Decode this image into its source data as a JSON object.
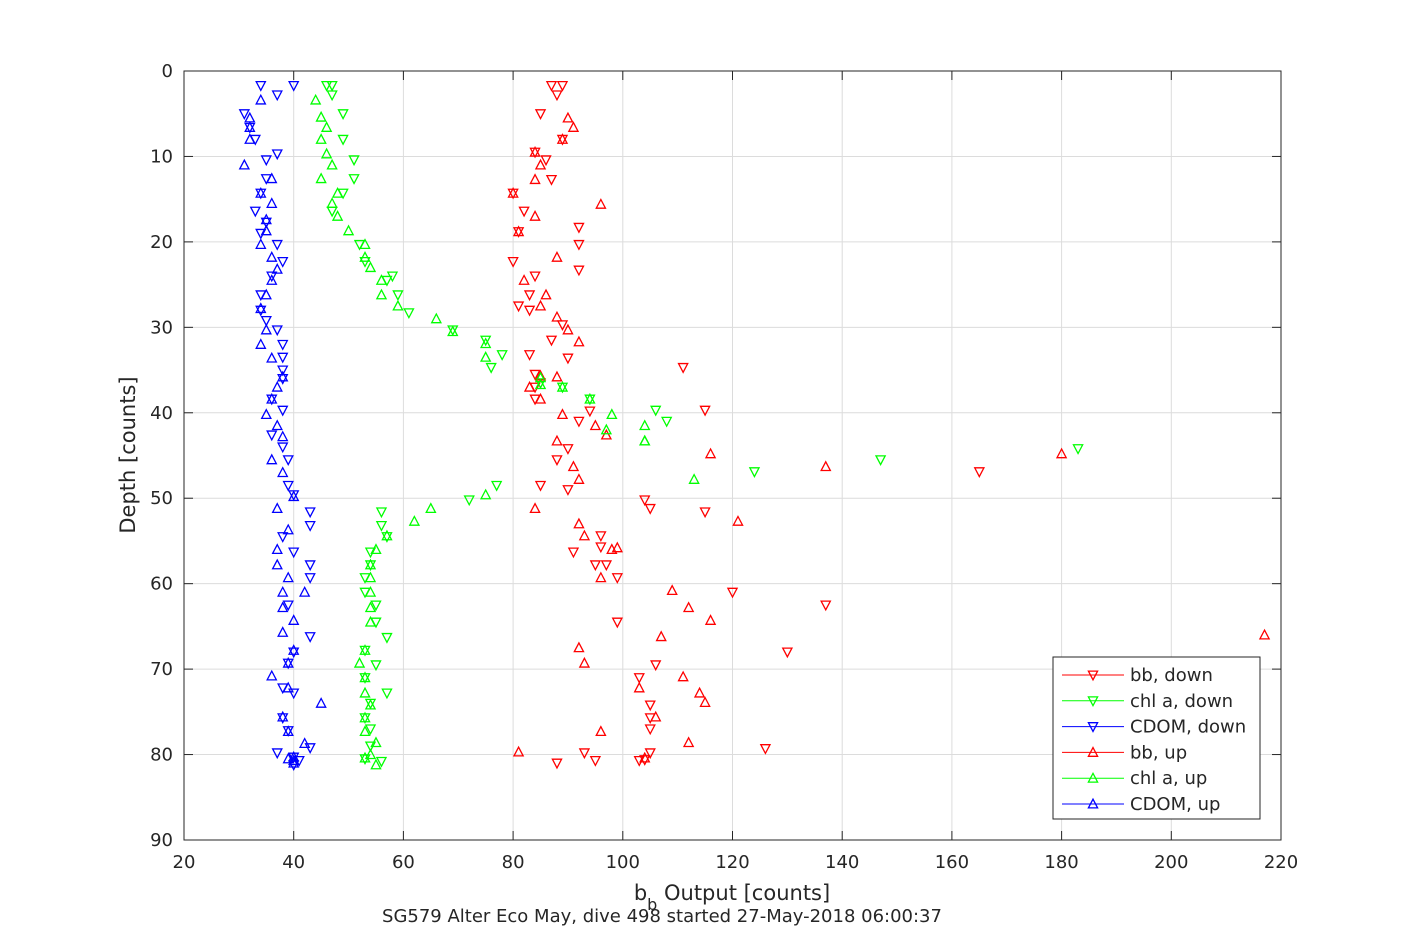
{
  "chart_data": {
    "type": "scatter",
    "xlabel": "b",
    "xlabel_subscript": "b",
    "xlabel_rest": " Output [counts]",
    "ylabel": "Depth [counts]",
    "subtitle": "SG579 Alter Eco May, dive 498 started 27-May-2018 06:00:37",
    "xlim": [
      20,
      220
    ],
    "ylim": [
      0,
      90
    ],
    "y_reversed": true,
    "grid": true,
    "legend_position": "bottom-right",
    "x_ticks": [
      20,
      40,
      60,
      80,
      100,
      120,
      140,
      160,
      180,
      200,
      220
    ],
    "y_ticks": [
      0,
      10,
      20,
      30,
      40,
      50,
      60,
      70,
      80,
      90
    ],
    "series": [
      {
        "name": "bb, down",
        "color": "#ff0000",
        "marker": "triangle-down",
        "points": [
          [
            87,
            1.7
          ],
          [
            89,
            1.7
          ],
          [
            88,
            2.8
          ],
          [
            85,
            5
          ],
          [
            89,
            8
          ],
          [
            84,
            9.5
          ],
          [
            86,
            10.4
          ],
          [
            87,
            12.7
          ],
          [
            80,
            14.3
          ],
          [
            82,
            16.4
          ],
          [
            92,
            18.3
          ],
          [
            81,
            18.8
          ],
          [
            92,
            20.3
          ],
          [
            80,
            22.3
          ],
          [
            92,
            23.3
          ],
          [
            84,
            24
          ],
          [
            83,
            26.2
          ],
          [
            81,
            27.5
          ],
          [
            83,
            28
          ],
          [
            89,
            29.7
          ],
          [
            87,
            31.5
          ],
          [
            83,
            33.2
          ],
          [
            90,
            33.6
          ],
          [
            84,
            35.5
          ],
          [
            84,
            37
          ],
          [
            84,
            38.4
          ],
          [
            94,
            39.8
          ],
          [
            92,
            41
          ],
          [
            90,
            44.2
          ],
          [
            88,
            45.5
          ],
          [
            85,
            48.5
          ],
          [
            90,
            49
          ],
          [
            104,
            50.2
          ],
          [
            105,
            51.2
          ],
          [
            91,
            56.3
          ],
          [
            95,
            57.8
          ],
          [
            97,
            57.8
          ],
          [
            99,
            59.3
          ],
          [
            99,
            64.5
          ],
          [
            106,
            69.5
          ],
          [
            103,
            71
          ],
          [
            105,
            74.2
          ],
          [
            105,
            75.7
          ],
          [
            105,
            77
          ],
          [
            93,
            79.8
          ],
          [
            95,
            80.7
          ],
          [
            88,
            81
          ],
          [
            104,
            80.6
          ],
          [
            105,
            79.8
          ],
          [
            111,
            34.7
          ],
          [
            115,
            39.7
          ],
          [
            165,
            46.9
          ],
          [
            115,
            51.6
          ],
          [
            120,
            61
          ],
          [
            137,
            62.5
          ],
          [
            130,
            68
          ],
          [
            126,
            79.3
          ],
          [
            103,
            80.7
          ],
          [
            96,
            54.4
          ],
          [
            96,
            55.7
          ]
        ]
      },
      {
        "name": "chl a, down",
        "color": "#00ff00",
        "marker": "triangle-down",
        "points": [
          [
            46,
            1.7
          ],
          [
            47,
            1.7
          ],
          [
            47,
            2.8
          ],
          [
            49,
            5
          ],
          [
            49,
            8
          ],
          [
            51,
            10.4
          ],
          [
            51,
            12.6
          ],
          [
            49,
            14.3
          ],
          [
            47,
            16.4
          ],
          [
            52,
            20.3
          ],
          [
            53,
            22.3
          ],
          [
            58,
            24
          ],
          [
            57,
            24.5
          ],
          [
            59,
            26.2
          ],
          [
            61,
            28.3
          ],
          [
            69,
            30.3
          ],
          [
            75,
            31.5
          ],
          [
            78,
            33.2
          ],
          [
            76,
            34.7
          ],
          [
            85,
            36.5
          ],
          [
            89,
            37
          ],
          [
            94,
            38.4
          ],
          [
            106,
            39.7
          ],
          [
            108,
            41
          ],
          [
            183,
            44.2
          ],
          [
            147,
            45.5
          ],
          [
            124,
            46.9
          ],
          [
            77,
            48.5
          ],
          [
            72,
            50.2
          ],
          [
            56,
            51.6
          ],
          [
            56,
            53.2
          ],
          [
            57,
            54.5
          ],
          [
            54,
            56.3
          ],
          [
            54,
            57.8
          ],
          [
            53,
            59.3
          ],
          [
            53,
            61
          ],
          [
            55,
            62.5
          ],
          [
            55,
            64.5
          ],
          [
            57,
            66.3
          ],
          [
            53,
            67.8
          ],
          [
            55,
            69.5
          ],
          [
            53,
            71
          ],
          [
            57,
            72.8
          ],
          [
            54,
            74
          ],
          [
            53,
            75.7
          ],
          [
            54,
            77
          ],
          [
            54,
            79
          ],
          [
            53,
            80.5
          ],
          [
            56,
            80.8
          ]
        ]
      },
      {
        "name": "CDOM, down",
        "color": "#0000ff",
        "marker": "triangle-down",
        "points": [
          [
            34,
            1.7
          ],
          [
            40,
            1.7
          ],
          [
            37,
            2.8
          ],
          [
            31,
            5
          ],
          [
            32,
            6.6
          ],
          [
            33,
            8
          ],
          [
            37,
            9.7
          ],
          [
            35,
            10.4
          ],
          [
            35,
            12.6
          ],
          [
            34,
            14.3
          ],
          [
            33,
            16.4
          ],
          [
            35,
            17.7
          ],
          [
            34,
            19
          ],
          [
            37,
            20.3
          ],
          [
            38,
            22.3
          ],
          [
            36,
            24
          ],
          [
            34,
            26.2
          ],
          [
            34,
            28
          ],
          [
            35,
            29.2
          ],
          [
            37,
            30.3
          ],
          [
            38,
            32
          ],
          [
            38,
            33.5
          ],
          [
            38,
            35
          ],
          [
            38,
            36
          ],
          [
            36,
            38.4
          ],
          [
            38,
            39.7
          ],
          [
            36,
            42.6
          ],
          [
            38,
            44
          ],
          [
            39,
            45.5
          ],
          [
            39,
            48.5
          ],
          [
            40,
            49.6
          ],
          [
            43,
            51.6
          ],
          [
            43,
            53.2
          ],
          [
            38,
            54.5
          ],
          [
            40,
            56.3
          ],
          [
            43,
            57.8
          ],
          [
            43,
            59.3
          ],
          [
            39,
            62.5
          ],
          [
            43,
            66.2
          ],
          [
            40,
            68
          ],
          [
            39,
            69.3
          ],
          [
            38,
            72.2
          ],
          [
            40,
            72.8
          ],
          [
            38,
            75.7
          ],
          [
            39,
            77.2
          ],
          [
            43,
            79.2
          ],
          [
            37,
            79.8
          ],
          [
            40,
            80.3
          ],
          [
            41,
            80.7
          ],
          [
            40,
            81.2
          ]
        ]
      },
      {
        "name": "bb, up",
        "color": "#ff0000",
        "marker": "triangle-up",
        "points": [
          [
            90,
            5.5
          ],
          [
            91,
            6.6
          ],
          [
            89,
            8
          ],
          [
            84,
            9.5
          ],
          [
            85,
            11
          ],
          [
            84,
            12.7
          ],
          [
            80,
            14.3
          ],
          [
            96,
            15.6
          ],
          [
            84,
            17
          ],
          [
            81,
            18.8
          ],
          [
            88,
            21.8
          ],
          [
            82,
            24.5
          ],
          [
            86,
            26.2
          ],
          [
            85,
            27.5
          ],
          [
            88,
            28.8
          ],
          [
            90,
            30.3
          ],
          [
            92,
            31.7
          ],
          [
            85,
            35.7
          ],
          [
            88,
            35.8
          ],
          [
            83,
            37
          ],
          [
            85,
            38.4
          ],
          [
            89,
            40.2
          ],
          [
            95,
            41.5
          ],
          [
            97,
            42.6
          ],
          [
            88,
            43.3
          ],
          [
            91,
            46.3
          ],
          [
            92,
            47.8
          ],
          [
            84,
            51.2
          ],
          [
            92,
            53
          ],
          [
            93,
            54.4
          ],
          [
            98,
            56
          ],
          [
            99,
            55.8
          ],
          [
            96,
            59.3
          ],
          [
            109,
            60.8
          ],
          [
            112,
            62.8
          ],
          [
            116,
            64.3
          ],
          [
            107,
            66.2
          ],
          [
            92,
            67.5
          ],
          [
            93,
            69.3
          ],
          [
            111,
            70.9
          ],
          [
            103,
            72.2
          ],
          [
            114,
            72.8
          ],
          [
            106,
            75.6
          ],
          [
            115,
            73.9
          ],
          [
            96,
            77.3
          ],
          [
            112,
            78.6
          ],
          [
            104,
            80.4
          ],
          [
            116,
            44.8
          ],
          [
            121,
            52.7
          ],
          [
            217,
            66
          ],
          [
            137,
            46.3
          ],
          [
            180,
            44.8
          ],
          [
            81,
            79.7
          ]
        ]
      },
      {
        "name": "chl a, up",
        "color": "#00ff00",
        "marker": "triangle-up",
        "points": [
          [
            44,
            3.4
          ],
          [
            45,
            5.4
          ],
          [
            46,
            6.6
          ],
          [
            45,
            8
          ],
          [
            46,
            9.7
          ],
          [
            47,
            11
          ],
          [
            45,
            12.6
          ],
          [
            48,
            14.3
          ],
          [
            47,
            15.5
          ],
          [
            48,
            17
          ],
          [
            50,
            18.7
          ],
          [
            53,
            20.3
          ],
          [
            53,
            21.8
          ],
          [
            54,
            23
          ],
          [
            56,
            24.5
          ],
          [
            56,
            26.2
          ],
          [
            59,
            27.5
          ],
          [
            66,
            29
          ],
          [
            69,
            30.5
          ],
          [
            75,
            31.9
          ],
          [
            75,
            33.5
          ],
          [
            85,
            35.9
          ],
          [
            85,
            36.7
          ],
          [
            89,
            37
          ],
          [
            94,
            38.4
          ],
          [
            98,
            40.2
          ],
          [
            104,
            41.5
          ],
          [
            104,
            43.3
          ],
          [
            113,
            47.8
          ],
          [
            75,
            49.6
          ],
          [
            65,
            51.2
          ],
          [
            62,
            52.7
          ],
          [
            57,
            54.4
          ],
          [
            55,
            56
          ],
          [
            54,
            57.8
          ],
          [
            54,
            59.3
          ],
          [
            54,
            61
          ],
          [
            54,
            62.8
          ],
          [
            54,
            64.5
          ],
          [
            53,
            67.8
          ],
          [
            52,
            69.3
          ],
          [
            53,
            71
          ],
          [
            53,
            72.8
          ],
          [
            54,
            74.2
          ],
          [
            53,
            75.7
          ],
          [
            53,
            77.3
          ],
          [
            55,
            78.6
          ],
          [
            54,
            80
          ],
          [
            53,
            80.4
          ],
          [
            55,
            81.2
          ],
          [
            104,
            43.3
          ],
          [
            97,
            42
          ]
        ]
      },
      {
        "name": "CDOM, up",
        "color": "#0000ff",
        "marker": "triangle-up",
        "points": [
          [
            34,
            3.4
          ],
          [
            32,
            5.5
          ],
          [
            32,
            6.6
          ],
          [
            32,
            8
          ],
          [
            31,
            11
          ],
          [
            36,
            12.6
          ],
          [
            34,
            14.3
          ],
          [
            36,
            15.5
          ],
          [
            35,
            17.4
          ],
          [
            35,
            18.7
          ],
          [
            34,
            20.3
          ],
          [
            36,
            21.8
          ],
          [
            37,
            23.2
          ],
          [
            36,
            24.5
          ],
          [
            35,
            26.2
          ],
          [
            34,
            27.8
          ],
          [
            35,
            30.3
          ],
          [
            34,
            32
          ],
          [
            36,
            33.6
          ],
          [
            38,
            35.8
          ],
          [
            37,
            37
          ],
          [
            36,
            38.4
          ],
          [
            35,
            40.2
          ],
          [
            37,
            41.5
          ],
          [
            38,
            42.8
          ],
          [
            36,
            45.5
          ],
          [
            38,
            47
          ],
          [
            40,
            49.8
          ],
          [
            37,
            51.2
          ],
          [
            39,
            53.7
          ],
          [
            37,
            56
          ],
          [
            37,
            57.8
          ],
          [
            39,
            59.3
          ],
          [
            38,
            61
          ],
          [
            38,
            62.8
          ],
          [
            42,
            61
          ],
          [
            40,
            64.3
          ],
          [
            38,
            65.7
          ],
          [
            40,
            67.8
          ],
          [
            39,
            69.3
          ],
          [
            36,
            70.8
          ],
          [
            39,
            72.2
          ],
          [
            45,
            74
          ],
          [
            38,
            75.6
          ],
          [
            39,
            77.3
          ],
          [
            42,
            78.7
          ],
          [
            39,
            80.5
          ],
          [
            40,
            80.7
          ],
          [
            40,
            81
          ],
          [
            40,
            80.3
          ]
        ]
      }
    ]
  }
}
